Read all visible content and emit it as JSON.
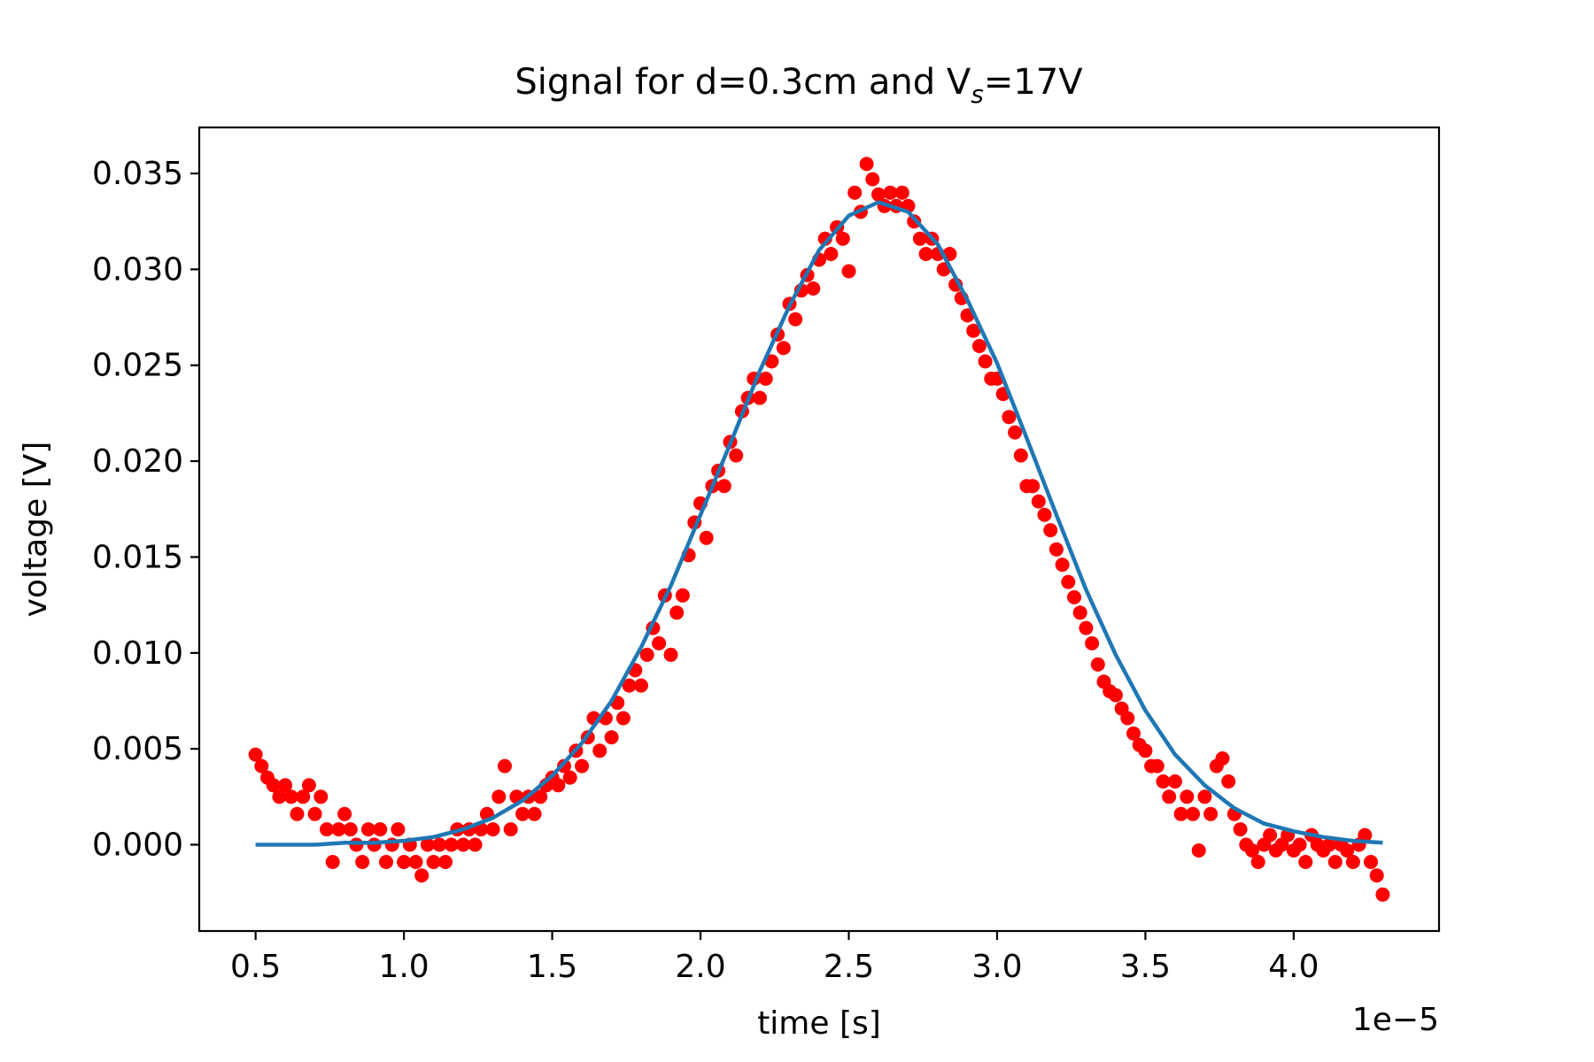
{
  "chart_data": {
    "type": "scatter",
    "title": "Signal for d=0.3cm and V",
    "title_subscript": "s",
    "title_suffix": "=17V",
    "xlabel": "time [s]",
    "ylabel": "voltage [V]",
    "x_offset_label": "1e−5",
    "xlim": [
      0.31,
      4.49
    ],
    "ylim": [
      -0.0045,
      0.0374
    ],
    "x_ticks": [
      "0.5",
      "1.0",
      "1.5",
      "2.0",
      "2.5",
      "3.0",
      "3.5",
      "4.0"
    ],
    "y_ticks": [
      "0.000",
      "0.005",
      "0.010",
      "0.015",
      "0.020",
      "0.025",
      "0.030",
      "0.035"
    ],
    "grid": false,
    "legend": "none",
    "colors": {
      "measured": "#ff0000",
      "fit": "#1f77b4"
    },
    "series": [
      {
        "kind": "scatter",
        "color": "#ff0000",
        "points": [
          [
            0.5,
            0.0047
          ],
          [
            0.52,
            0.0041
          ],
          [
            0.54,
            0.0035
          ],
          [
            0.56,
            0.0031
          ],
          [
            0.58,
            0.0025
          ],
          [
            0.6,
            0.0031
          ],
          [
            0.62,
            0.0025
          ],
          [
            0.64,
            0.0016
          ],
          [
            0.66,
            0.0025
          ],
          [
            0.68,
            0.0031
          ],
          [
            0.7,
            0.0016
          ],
          [
            0.72,
            0.0025
          ],
          [
            0.74,
            0.0008
          ],
          [
            0.76,
            -0.0009
          ],
          [
            0.78,
            0.0008
          ],
          [
            0.8,
            0.0016
          ],
          [
            0.82,
            0.0008
          ],
          [
            0.84,
            0.0
          ],
          [
            0.86,
            -0.0009
          ],
          [
            0.88,
            0.0008
          ],
          [
            0.9,
            0.0
          ],
          [
            0.92,
            0.0008
          ],
          [
            0.94,
            -0.0009
          ],
          [
            0.96,
            0.0
          ],
          [
            0.98,
            0.0008
          ],
          [
            1.0,
            -0.0009
          ],
          [
            1.02,
            0.0
          ],
          [
            1.04,
            -0.0009
          ],
          [
            1.06,
            -0.0016
          ],
          [
            1.08,
            0.0
          ],
          [
            1.1,
            -0.0009
          ],
          [
            1.12,
            0.0
          ],
          [
            1.14,
            -0.0009
          ],
          [
            1.16,
            0.0
          ],
          [
            1.18,
            0.0008
          ],
          [
            1.2,
            0.0
          ],
          [
            1.22,
            0.0008
          ],
          [
            1.24,
            0.0
          ],
          [
            1.26,
            0.0008
          ],
          [
            1.28,
            0.0016
          ],
          [
            1.3,
            0.0008
          ],
          [
            1.32,
            0.0025
          ],
          [
            1.34,
            0.0041
          ],
          [
            1.36,
            0.0008
          ],
          [
            1.38,
            0.0025
          ],
          [
            1.4,
            0.0016
          ],
          [
            1.42,
            0.0025
          ],
          [
            1.44,
            0.0016
          ],
          [
            1.46,
            0.0025
          ],
          [
            1.48,
            0.0031
          ],
          [
            1.5,
            0.0035
          ],
          [
            1.52,
            0.0031
          ],
          [
            1.54,
            0.0041
          ],
          [
            1.56,
            0.0035
          ],
          [
            1.58,
            0.0049
          ],
          [
            1.6,
            0.0041
          ],
          [
            1.62,
            0.0056
          ],
          [
            1.64,
            0.0066
          ],
          [
            1.66,
            0.0049
          ],
          [
            1.68,
            0.0066
          ],
          [
            1.7,
            0.0056
          ],
          [
            1.72,
            0.0074
          ],
          [
            1.74,
            0.0066
          ],
          [
            1.76,
            0.0083
          ],
          [
            1.78,
            0.0091
          ],
          [
            1.8,
            0.0083
          ],
          [
            1.82,
            0.0099
          ],
          [
            1.84,
            0.0113
          ],
          [
            1.86,
            0.0105
          ],
          [
            1.88,
            0.013
          ],
          [
            1.9,
            0.0099
          ],
          [
            1.92,
            0.0121
          ],
          [
            1.94,
            0.013
          ],
          [
            1.96,
            0.0151
          ],
          [
            1.98,
            0.0168
          ],
          [
            2.0,
            0.0178
          ],
          [
            2.02,
            0.016
          ],
          [
            2.04,
            0.0187
          ],
          [
            2.06,
            0.0195
          ],
          [
            2.08,
            0.0187
          ],
          [
            2.1,
            0.021
          ],
          [
            2.12,
            0.0203
          ],
          [
            2.14,
            0.0226
          ],
          [
            2.16,
            0.0233
          ],
          [
            2.18,
            0.0243
          ],
          [
            2.2,
            0.0233
          ],
          [
            2.22,
            0.0243
          ],
          [
            2.24,
            0.0252
          ],
          [
            2.26,
            0.0266
          ],
          [
            2.28,
            0.0259
          ],
          [
            2.3,
            0.0282
          ],
          [
            2.32,
            0.0274
          ],
          [
            2.34,
            0.0289
          ],
          [
            2.36,
            0.0297
          ],
          [
            2.38,
            0.029
          ],
          [
            2.4,
            0.0305
          ],
          [
            2.42,
            0.0316
          ],
          [
            2.44,
            0.0308
          ],
          [
            2.46,
            0.0322
          ],
          [
            2.48,
            0.0316
          ],
          [
            2.5,
            0.0299
          ],
          [
            2.52,
            0.034
          ],
          [
            2.54,
            0.033
          ],
          [
            2.56,
            0.0355
          ],
          [
            2.58,
            0.0347
          ],
          [
            2.6,
            0.0339
          ],
          [
            2.62,
            0.0333
          ],
          [
            2.64,
            0.034
          ],
          [
            2.66,
            0.0333
          ],
          [
            2.68,
            0.034
          ],
          [
            2.7,
            0.0333
          ],
          [
            2.72,
            0.0325
          ],
          [
            2.74,
            0.0316
          ],
          [
            2.76,
            0.0308
          ],
          [
            2.78,
            0.0316
          ],
          [
            2.8,
            0.0308
          ],
          [
            2.82,
            0.03
          ],
          [
            2.84,
            0.0308
          ],
          [
            2.86,
            0.0292
          ],
          [
            2.88,
            0.0285
          ],
          [
            2.9,
            0.0276
          ],
          [
            2.92,
            0.0268
          ],
          [
            2.94,
            0.026
          ],
          [
            2.96,
            0.0252
          ],
          [
            2.98,
            0.0243
          ],
          [
            3.0,
            0.0243
          ],
          [
            3.02,
            0.0235
          ],
          [
            3.04,
            0.0223
          ],
          [
            3.06,
            0.0215
          ],
          [
            3.08,
            0.0203
          ],
          [
            3.1,
            0.0187
          ],
          [
            3.12,
            0.0187
          ],
          [
            3.14,
            0.0179
          ],
          [
            3.16,
            0.0172
          ],
          [
            3.18,
            0.0164
          ],
          [
            3.2,
            0.0154
          ],
          [
            3.22,
            0.0146
          ],
          [
            3.24,
            0.0137
          ],
          [
            3.26,
            0.0129
          ],
          [
            3.28,
            0.0121
          ],
          [
            3.3,
            0.0113
          ],
          [
            3.32,
            0.0105
          ],
          [
            3.34,
            0.0094
          ],
          [
            3.36,
            0.0085
          ],
          [
            3.38,
            0.008
          ],
          [
            3.4,
            0.0078
          ],
          [
            3.42,
            0.0071
          ],
          [
            3.44,
            0.0066
          ],
          [
            3.46,
            0.0058
          ],
          [
            3.48,
            0.0052
          ],
          [
            3.5,
            0.0049
          ],
          [
            3.52,
            0.0041
          ],
          [
            3.54,
            0.0041
          ],
          [
            3.56,
            0.0033
          ],
          [
            3.58,
            0.0025
          ],
          [
            3.6,
            0.0033
          ],
          [
            3.62,
            0.0016
          ],
          [
            3.64,
            0.0025
          ],
          [
            3.66,
            0.0016
          ],
          [
            3.68,
            -0.0003
          ],
          [
            3.7,
            0.0025
          ],
          [
            3.72,
            0.0016
          ],
          [
            3.74,
            0.0041
          ],
          [
            3.76,
            0.0045
          ],
          [
            3.78,
            0.0033
          ],
          [
            3.8,
            0.0016
          ],
          [
            3.82,
            0.0008
          ],
          [
            3.84,
            0.0
          ],
          [
            3.86,
            -0.0003
          ],
          [
            3.88,
            -0.0009
          ],
          [
            3.9,
            0.0
          ],
          [
            3.92,
            0.0005
          ],
          [
            3.94,
            -0.0003
          ],
          [
            3.96,
            0.0
          ],
          [
            3.98,
            0.0005
          ],
          [
            4.0,
            -0.0003
          ],
          [
            4.02,
            0.0
          ],
          [
            4.04,
            -0.0009
          ],
          [
            4.06,
            0.0005
          ],
          [
            4.08,
            0.0
          ],
          [
            4.1,
            -0.0003
          ],
          [
            4.12,
            0.0
          ],
          [
            4.14,
            -0.0009
          ],
          [
            4.16,
            0.0
          ],
          [
            4.18,
            -0.0003
          ],
          [
            4.2,
            -0.0009
          ],
          [
            4.22,
            0.0
          ],
          [
            4.24,
            0.0005
          ],
          [
            4.26,
            -0.0009
          ],
          [
            4.28,
            -0.0016
          ],
          [
            4.3,
            -0.0026
          ]
        ]
      },
      {
        "kind": "line",
        "color": "#1f77b4",
        "points": [
          [
            0.5,
            0.0
          ],
          [
            0.7,
            0.0
          ],
          [
            0.8,
            0.0001
          ],
          [
            0.9,
            0.0001
          ],
          [
            1.0,
            0.0002
          ],
          [
            1.1,
            0.0004
          ],
          [
            1.2,
            0.0008
          ],
          [
            1.3,
            0.0014
          ],
          [
            1.4,
            0.0023
          ],
          [
            1.5,
            0.0036
          ],
          [
            1.6,
            0.0053
          ],
          [
            1.7,
            0.0075
          ],
          [
            1.8,
            0.0103
          ],
          [
            1.9,
            0.0135
          ],
          [
            2.0,
            0.0172
          ],
          [
            2.1,
            0.0209
          ],
          [
            2.2,
            0.0247
          ],
          [
            2.3,
            0.0281
          ],
          [
            2.4,
            0.031
          ],
          [
            2.5,
            0.0328
          ],
          [
            2.6,
            0.0335
          ],
          [
            2.7,
            0.033
          ],
          [
            2.8,
            0.0313
          ],
          [
            2.9,
            0.0284
          ],
          [
            3.0,
            0.0251
          ],
          [
            3.1,
            0.0212
          ],
          [
            3.2,
            0.0172
          ],
          [
            3.3,
            0.0133
          ],
          [
            3.4,
            0.0099
          ],
          [
            3.5,
            0.007
          ],
          [
            3.6,
            0.0047
          ],
          [
            3.7,
            0.0031
          ],
          [
            3.8,
            0.0019
          ],
          [
            3.9,
            0.0011
          ],
          [
            4.0,
            0.0007
          ],
          [
            4.1,
            0.0004
          ],
          [
            4.2,
            0.0002
          ],
          [
            4.3,
            0.0001
          ]
        ]
      }
    ]
  }
}
